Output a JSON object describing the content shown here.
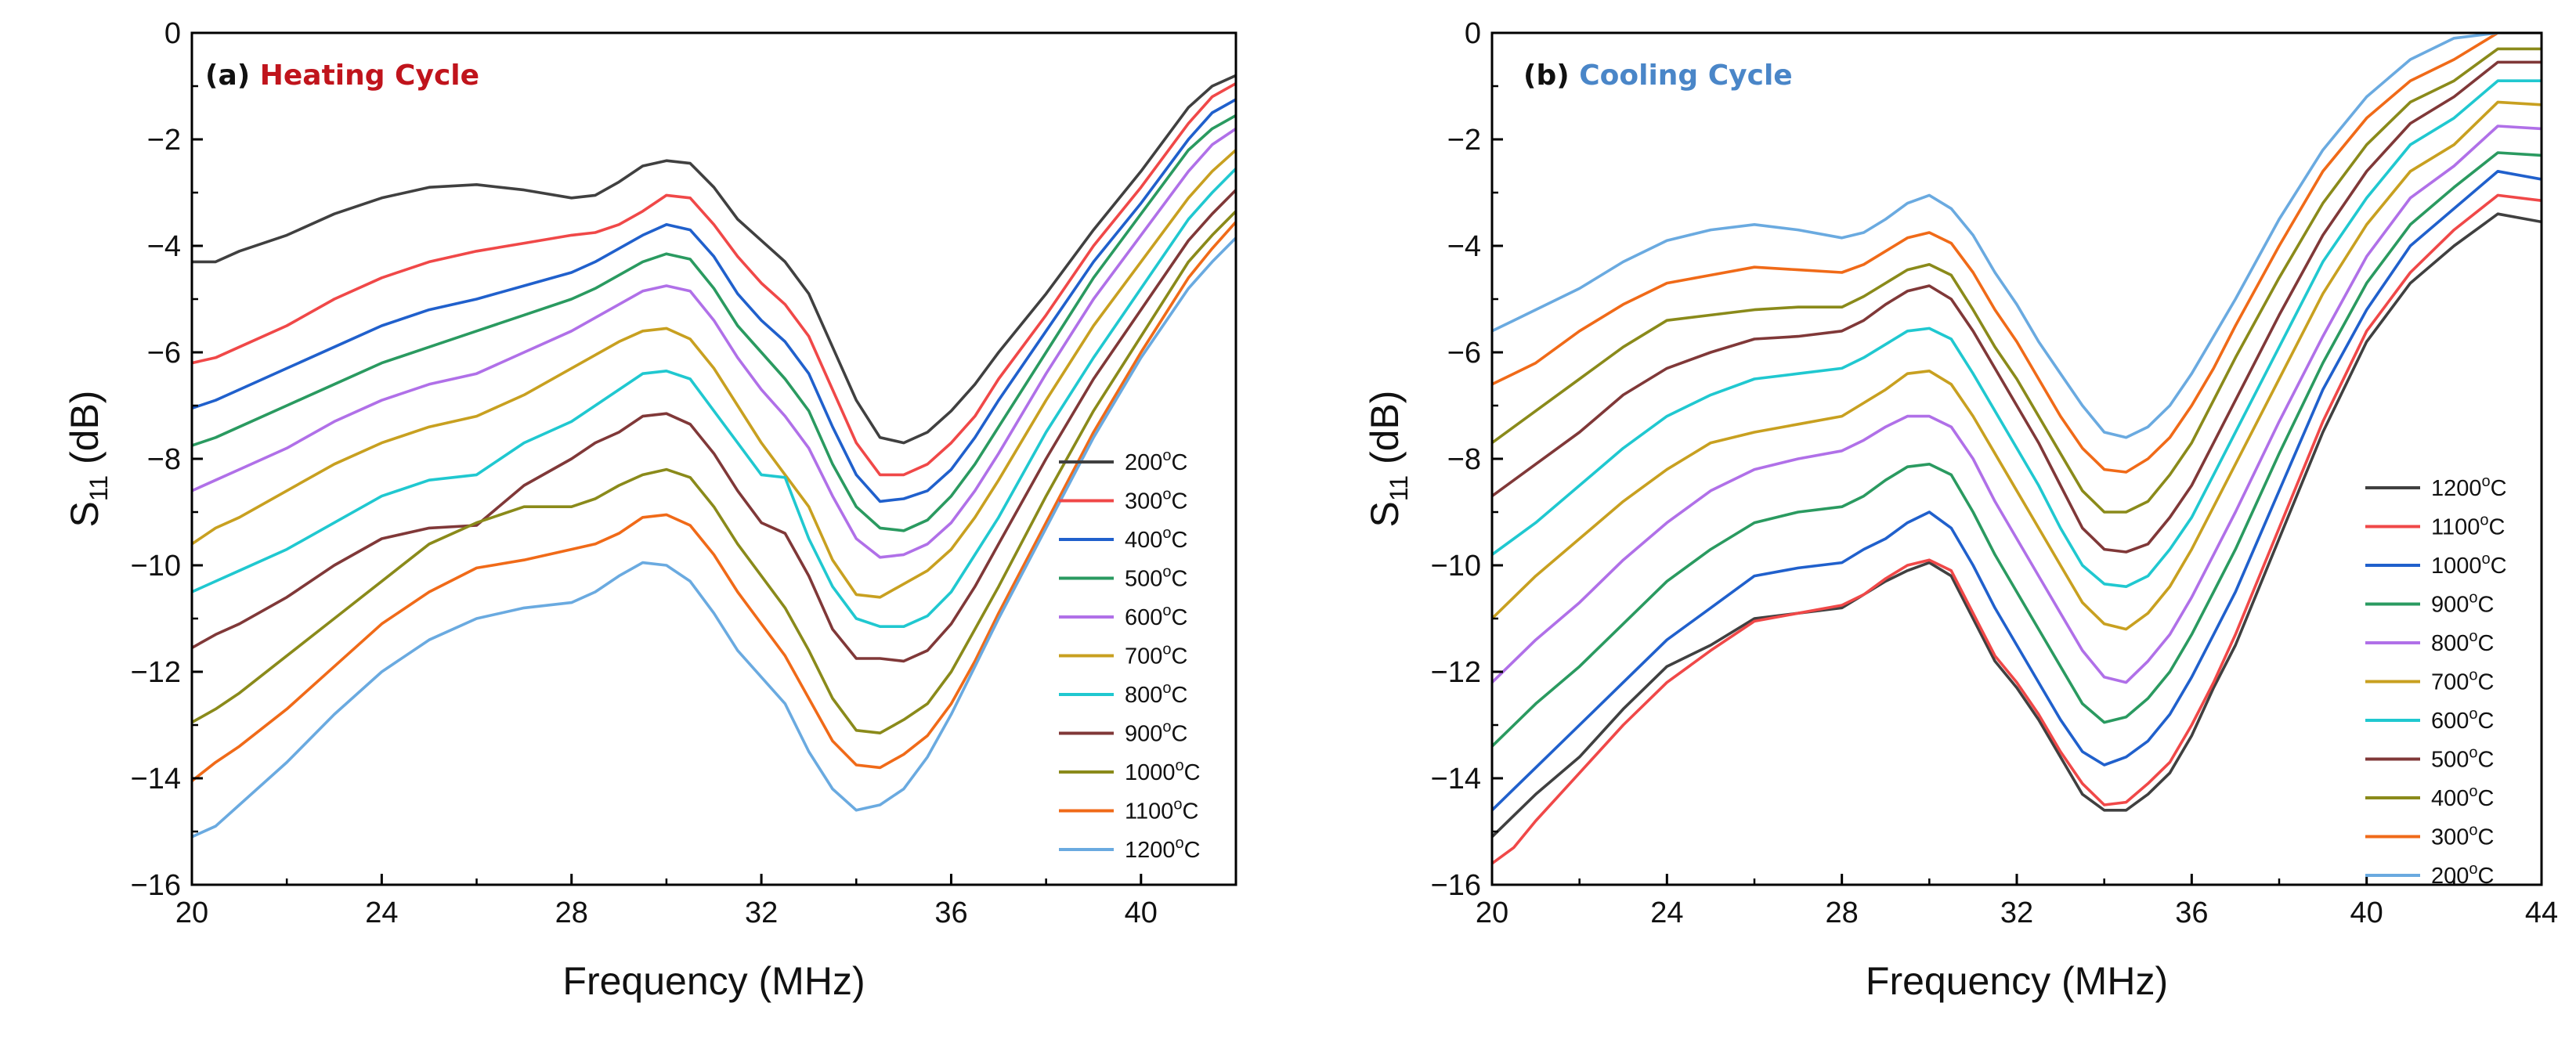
{
  "chart_data": [
    {
      "type": "line",
      "panel_letter": "(a)",
      "title": "Heating Cycle",
      "title_color": "#c0141c",
      "xlabel": "Frequency (MHz)",
      "ylabel_main": "S",
      "ylabel_sub": "11",
      "ylabel_unit": " (dB)",
      "xlim": [
        20,
        42
      ],
      "ylim": [
        -16,
        0
      ],
      "xticks": [
        "20",
        "24",
        "28",
        "32",
        "36",
        "40"
      ],
      "yticks": [
        "0",
        "−2",
        "−4",
        "−6",
        "−8",
        "−10",
        "−12",
        "−14",
        "−16"
      ],
      "grid": false,
      "legend_position": "lower-right",
      "x": [
        20,
        20.5,
        21,
        22,
        23,
        24,
        25,
        26,
        27,
        28,
        28.5,
        29,
        29.5,
        30,
        30.5,
        31,
        31.5,
        32,
        32.5,
        33,
        33.5,
        34,
        34.5,
        35,
        35.5,
        36,
        36.5,
        37,
        38,
        39,
        40,
        41,
        41.5,
        42
      ],
      "series": [
        {
          "name": "200°C",
          "color": "#404040",
          "values": [
            -4.3,
            -4.3,
            -4.1,
            -3.8,
            -3.4,
            -3.1,
            -2.9,
            -2.85,
            -2.95,
            -3.1,
            -3.05,
            -2.8,
            -2.5,
            -2.4,
            -2.45,
            -2.9,
            -3.5,
            -3.9,
            -4.3,
            -4.9,
            -5.9,
            -6.9,
            -7.6,
            -7.7,
            -7.5,
            -7.1,
            -6.6,
            -6.0,
            -4.9,
            -3.7,
            -2.6,
            -1.4,
            -1.0,
            -0.8
          ]
        },
        {
          "name": "300°C",
          "color": "#f04848",
          "values": [
            -6.2,
            -6.1,
            -5.9,
            -5.5,
            -5.0,
            -4.6,
            -4.3,
            -4.1,
            -3.95,
            -3.8,
            -3.75,
            -3.6,
            -3.35,
            -3.05,
            -3.1,
            -3.6,
            -4.2,
            -4.7,
            -5.1,
            -5.7,
            -6.7,
            -7.7,
            -8.3,
            -8.3,
            -8.1,
            -7.7,
            -7.2,
            -6.5,
            -5.3,
            -4.0,
            -2.9,
            -1.7,
            -1.2,
            -0.95
          ]
        },
        {
          "name": "400°C",
          "color": "#2060cc",
          "values": [
            -7.05,
            -6.9,
            -6.7,
            -6.3,
            -5.9,
            -5.5,
            -5.2,
            -5.0,
            -4.75,
            -4.5,
            -4.3,
            -4.05,
            -3.8,
            -3.6,
            -3.7,
            -4.2,
            -4.9,
            -5.4,
            -5.8,
            -6.4,
            -7.4,
            -8.3,
            -8.8,
            -8.75,
            -8.6,
            -8.2,
            -7.6,
            -6.9,
            -5.6,
            -4.3,
            -3.2,
            -2.0,
            -1.5,
            -1.25
          ]
        },
        {
          "name": "500°C",
          "color": "#2a9a60",
          "values": [
            -7.75,
            -7.6,
            -7.4,
            -7.0,
            -6.6,
            -6.2,
            -5.9,
            -5.6,
            -5.3,
            -5.0,
            -4.8,
            -4.55,
            -4.3,
            -4.15,
            -4.25,
            -4.8,
            -5.5,
            -6.0,
            -6.5,
            -7.1,
            -8.1,
            -8.9,
            -9.3,
            -9.35,
            -9.15,
            -8.7,
            -8.1,
            -7.4,
            -6.0,
            -4.6,
            -3.4,
            -2.2,
            -1.8,
            -1.55
          ]
        },
        {
          "name": "600°C",
          "color": "#b070e8",
          "values": [
            -8.6,
            -8.4,
            -8.2,
            -7.8,
            -7.3,
            -6.9,
            -6.6,
            -6.4,
            -6.0,
            -5.6,
            -5.35,
            -5.1,
            -4.85,
            -4.75,
            -4.85,
            -5.4,
            -6.1,
            -6.7,
            -7.2,
            -7.8,
            -8.7,
            -9.5,
            -9.85,
            -9.8,
            -9.6,
            -9.2,
            -8.6,
            -7.9,
            -6.4,
            -5.0,
            -3.8,
            -2.6,
            -2.1,
            -1.8
          ]
        },
        {
          "name": "700°C",
          "color": "#c8a020",
          "values": [
            -9.6,
            -9.3,
            -9.1,
            -8.6,
            -8.1,
            -7.7,
            -7.4,
            -7.2,
            -6.8,
            -6.3,
            -6.05,
            -5.8,
            -5.6,
            -5.55,
            -5.75,
            -6.3,
            -7.0,
            -7.7,
            -8.3,
            -8.9,
            -9.9,
            -10.55,
            -10.6,
            -10.35,
            -10.1,
            -9.7,
            -9.1,
            -8.4,
            -6.9,
            -5.5,
            -4.3,
            -3.1,
            -2.6,
            -2.2
          ]
        },
        {
          "name": "800°C",
          "color": "#20c8d0",
          "values": [
            -10.5,
            -10.3,
            -10.1,
            -9.7,
            -9.2,
            -8.7,
            -8.4,
            -8.3,
            -7.7,
            -7.3,
            -7.0,
            -6.7,
            -6.4,
            -6.35,
            -6.5,
            -7.1,
            -7.7,
            -8.3,
            -8.35,
            -9.5,
            -10.4,
            -11.0,
            -11.15,
            -11.15,
            -10.95,
            -10.5,
            -9.8,
            -9.1,
            -7.5,
            -6.1,
            -4.8,
            -3.5,
            -3.0,
            -2.55
          ]
        },
        {
          "name": "900°C",
          "color": "#803838",
          "values": [
            -11.55,
            -11.3,
            -11.1,
            -10.6,
            -10.0,
            -9.5,
            -9.3,
            -9.25,
            -8.5,
            -8.0,
            -7.7,
            -7.5,
            -7.2,
            -7.15,
            -7.35,
            -7.9,
            -8.6,
            -9.2,
            -9.4,
            -10.2,
            -11.2,
            -11.75,
            -11.75,
            -11.8,
            -11.6,
            -11.1,
            -10.4,
            -9.6,
            -8.0,
            -6.5,
            -5.2,
            -3.9,
            -3.4,
            -2.95
          ]
        },
        {
          "name": "1000°C",
          "color": "#8a8a1a",
          "values": [
            -12.95,
            -12.7,
            -12.4,
            -11.7,
            -11.0,
            -10.3,
            -9.6,
            -9.2,
            -8.9,
            -8.9,
            -8.75,
            -8.5,
            -8.3,
            -8.2,
            -8.35,
            -8.9,
            -9.6,
            -10.2,
            -10.8,
            -11.6,
            -12.5,
            -13.1,
            -13.15,
            -12.9,
            -12.6,
            -12.0,
            -11.2,
            -10.4,
            -8.7,
            -7.1,
            -5.7,
            -4.3,
            -3.8,
            -3.35
          ]
        },
        {
          "name": "1100°C",
          "color": "#f06a18",
          "values": [
            -14.05,
            -13.7,
            -13.4,
            -12.7,
            -11.9,
            -11.1,
            -10.5,
            -10.05,
            -9.9,
            -9.7,
            -9.6,
            -9.4,
            -9.1,
            -9.05,
            -9.25,
            -9.8,
            -10.5,
            -11.1,
            -11.7,
            -12.5,
            -13.3,
            -13.75,
            -13.8,
            -13.55,
            -13.2,
            -12.6,
            -11.8,
            -10.9,
            -9.2,
            -7.5,
            -6.0,
            -4.6,
            -4.05,
            -3.55
          ]
        },
        {
          "name": "1200°C",
          "color": "#6aaae0",
          "values": [
            -15.1,
            -14.9,
            -14.5,
            -13.7,
            -12.8,
            -12.0,
            -11.4,
            -11.0,
            -10.8,
            -10.7,
            -10.5,
            -10.2,
            -9.95,
            -10.0,
            -10.3,
            -10.9,
            -11.6,
            -12.1,
            -12.6,
            -13.5,
            -14.2,
            -14.6,
            -14.5,
            -14.2,
            -13.6,
            -12.8,
            -11.9,
            -11.0,
            -9.3,
            -7.6,
            -6.1,
            -4.8,
            -4.3,
            -3.85
          ]
        }
      ]
    },
    {
      "type": "line",
      "panel_letter": "(b)",
      "title": "Cooling Cycle",
      "title_color": "#4a86c8",
      "xlabel": "Frequency (MHz)",
      "ylabel_main": "S",
      "ylabel_sub": "11",
      "ylabel_unit": " (dB)",
      "xlim": [
        20,
        44
      ],
      "ylim": [
        -16,
        0
      ],
      "xticks": [
        "20",
        "24",
        "28",
        "32",
        "36",
        "40",
        "44"
      ],
      "yticks": [
        "0",
        "−2",
        "−4",
        "−6",
        "−8",
        "−10",
        "−12",
        "−14",
        "−16"
      ],
      "grid": false,
      "legend_position": "lower-right",
      "x": [
        20,
        20.5,
        21,
        22,
        23,
        24,
        25,
        26,
        27,
        28,
        28.5,
        29,
        29.5,
        30,
        30.5,
        31,
        31.5,
        32,
        32.5,
        33,
        33.5,
        34,
        34.5,
        35,
        35.5,
        36,
        36.5,
        37,
        38,
        39,
        40,
        41,
        42,
        43,
        44
      ],
      "series": [
        {
          "name": "1200°C",
          "color": "#404040",
          "values": [
            -15.1,
            -14.7,
            -14.3,
            -13.6,
            -12.7,
            -11.9,
            -11.5,
            -11.0,
            -10.9,
            -10.8,
            -10.55,
            -10.3,
            -10.1,
            -9.95,
            -10.2,
            -11.0,
            -11.8,
            -12.3,
            -12.9,
            -13.6,
            -14.3,
            -14.6,
            -14.6,
            -14.3,
            -13.9,
            -13.2,
            -12.3,
            -11.5,
            -9.5,
            -7.5,
            -5.8,
            -4.7,
            -4.0,
            -3.4,
            -3.55
          ]
        },
        {
          "name": "1100°C",
          "color": "#f04848",
          "values": [
            -15.6,
            -15.3,
            -14.8,
            -13.9,
            -13.0,
            -12.2,
            -11.6,
            -11.05,
            -10.9,
            -10.75,
            -10.55,
            -10.25,
            -10.0,
            -9.9,
            -10.1,
            -10.9,
            -11.7,
            -12.2,
            -12.8,
            -13.5,
            -14.1,
            -14.5,
            -14.45,
            -14.1,
            -13.7,
            -13.0,
            -12.2,
            -11.3,
            -9.3,
            -7.3,
            -5.6,
            -4.5,
            -3.7,
            -3.05,
            -3.15
          ]
        },
        {
          "name": "1000°C",
          "color": "#2060cc",
          "values": [
            -14.6,
            -14.2,
            -13.8,
            -13.0,
            -12.2,
            -11.4,
            -10.8,
            -10.2,
            -10.05,
            -9.95,
            -9.7,
            -9.5,
            -9.2,
            -9.0,
            -9.3,
            -10.0,
            -10.8,
            -11.5,
            -12.2,
            -12.9,
            -13.5,
            -13.75,
            -13.6,
            -13.3,
            -12.8,
            -12.1,
            -11.3,
            -10.5,
            -8.6,
            -6.7,
            -5.2,
            -4.0,
            -3.3,
            -2.6,
            -2.75
          ]
        },
        {
          "name": "900°C",
          "color": "#2a9a60",
          "values": [
            -13.4,
            -13.0,
            -12.6,
            -11.9,
            -11.1,
            -10.3,
            -9.7,
            -9.2,
            -9.0,
            -8.9,
            -8.7,
            -8.4,
            -8.15,
            -8.1,
            -8.3,
            -9.0,
            -9.8,
            -10.5,
            -11.2,
            -11.9,
            -12.6,
            -12.95,
            -12.85,
            -12.5,
            -12.0,
            -11.3,
            -10.5,
            -9.7,
            -7.9,
            -6.2,
            -4.7,
            -3.6,
            -2.9,
            -2.25,
            -2.3
          ]
        },
        {
          "name": "800°C",
          "color": "#b070e8",
          "values": [
            -12.2,
            -11.8,
            -11.4,
            -10.7,
            -9.9,
            -9.2,
            -8.6,
            -8.2,
            -8.0,
            -7.85,
            -7.65,
            -7.4,
            -7.2,
            -7.2,
            -7.4,
            -8.0,
            -8.8,
            -9.5,
            -10.2,
            -10.9,
            -11.6,
            -12.1,
            -12.2,
            -11.8,
            -11.3,
            -10.6,
            -9.8,
            -9.0,
            -7.3,
            -5.7,
            -4.2,
            -3.1,
            -2.5,
            -1.75,
            -1.8
          ]
        },
        {
          "name": "700°C",
          "color": "#c8a020",
          "values": [
            -11.0,
            -10.6,
            -10.2,
            -9.5,
            -8.8,
            -8.2,
            -7.7,
            -7.5,
            -7.35,
            -7.2,
            -6.95,
            -6.7,
            -6.4,
            -6.35,
            -6.6,
            -7.2,
            -7.9,
            -8.6,
            -9.3,
            -10.0,
            -10.7,
            -11.1,
            -11.2,
            -10.9,
            -10.4,
            -9.7,
            -8.9,
            -8.1,
            -6.5,
            -4.9,
            -3.6,
            -2.6,
            -2.1,
            -1.3,
            -1.35
          ]
        },
        {
          "name": "600°C",
          "color": "#20c8d0",
          "values": [
            -9.8,
            -9.5,
            -9.2,
            -8.5,
            -7.8,
            -7.2,
            -6.8,
            -6.5,
            -6.4,
            -6.3,
            -6.1,
            -5.85,
            -5.6,
            -5.55,
            -5.75,
            -6.4,
            -7.1,
            -7.8,
            -8.5,
            -9.3,
            -10.0,
            -10.35,
            -10.4,
            -10.2,
            -9.7,
            -9.1,
            -8.3,
            -7.5,
            -5.9,
            -4.3,
            -3.1,
            -2.1,
            -1.6,
            -0.9,
            -0.9
          ]
        },
        {
          "name": "500°C",
          "color": "#803838",
          "values": [
            -8.7,
            -8.4,
            -8.1,
            -7.5,
            -6.8,
            -6.3,
            -6.0,
            -5.75,
            -5.7,
            -5.6,
            -5.4,
            -5.1,
            -4.85,
            -4.75,
            -5.0,
            -5.6,
            -6.3,
            -7.0,
            -7.7,
            -8.5,
            -9.3,
            -9.7,
            -9.75,
            -9.6,
            -9.1,
            -8.5,
            -7.7,
            -6.9,
            -5.3,
            -3.8,
            -2.6,
            -1.7,
            -1.2,
            -0.55,
            -0.55
          ]
        },
        {
          "name": "400°C",
          "color": "#8a8a1a",
          "values": [
            -7.7,
            -7.4,
            -7.1,
            -6.5,
            -5.9,
            -5.4,
            -5.3,
            -5.2,
            -5.15,
            -5.15,
            -4.95,
            -4.7,
            -4.45,
            -4.35,
            -4.55,
            -5.2,
            -5.9,
            -6.5,
            -7.2,
            -7.9,
            -8.6,
            -9.0,
            -9.0,
            -8.8,
            -8.3,
            -7.7,
            -6.9,
            -6.1,
            -4.6,
            -3.2,
            -2.1,
            -1.3,
            -0.9,
            -0.3,
            -0.3
          ]
        },
        {
          "name": "300°C",
          "color": "#f06a18",
          "values": [
            -6.6,
            -6.4,
            -6.2,
            -5.6,
            -5.1,
            -4.7,
            -4.55,
            -4.4,
            -4.45,
            -4.5,
            -4.35,
            -4.1,
            -3.85,
            -3.75,
            -3.95,
            -4.5,
            -5.2,
            -5.8,
            -6.5,
            -7.2,
            -7.8,
            -8.2,
            -8.25,
            -8.0,
            -7.6,
            -7.0,
            -6.3,
            -5.5,
            -4.0,
            -2.6,
            -1.6,
            -0.9,
            -0.5,
            0.0,
            0.0
          ]
        },
        {
          "name": "200°C",
          "color": "#6aaae0",
          "values": [
            -5.6,
            -5.4,
            -5.2,
            -4.8,
            -4.3,
            -3.9,
            -3.7,
            -3.6,
            -3.7,
            -3.85,
            -3.75,
            -3.5,
            -3.2,
            -3.05,
            -3.3,
            -3.8,
            -4.5,
            -5.1,
            -5.8,
            -6.4,
            -7.0,
            -7.5,
            -7.6,
            -7.4,
            -7.0,
            -6.4,
            -5.7,
            -5.0,
            -3.5,
            -2.2,
            -1.2,
            -0.5,
            -0.1,
            0.0,
            0.0
          ]
        }
      ]
    }
  ]
}
